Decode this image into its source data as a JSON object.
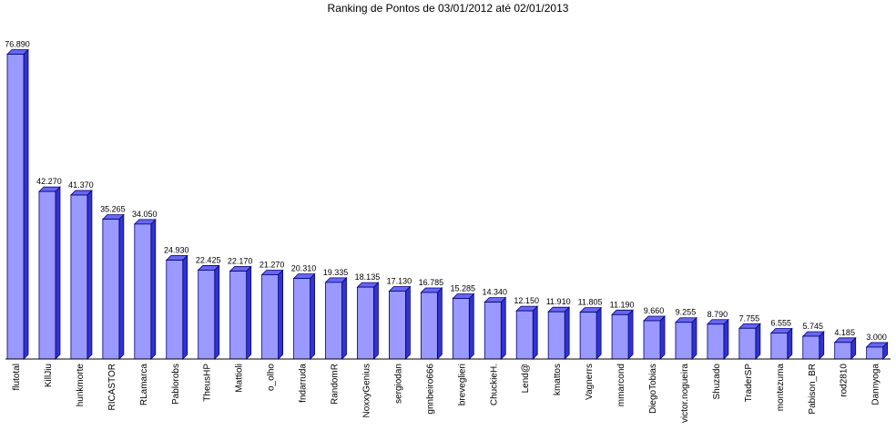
{
  "chart_data": {
    "type": "bar",
    "title": "Ranking de Pontos de 03/01/2012 até 02/01/2013",
    "xlabel": "",
    "ylabel": "",
    "ylim": [
      0,
      80
    ],
    "grid": false,
    "legend": "none",
    "categories": [
      "flutotal",
      "KillJiu",
      "hunkmorte",
      "RICASTOR",
      "RLamarca",
      "Pablorobs",
      "TheusHP",
      "Mattioli",
      "o_olho",
      "fndarruda",
      "RandomR",
      "NoxxyGenius",
      "sergiodan",
      "gnnbeiro666",
      "breveglieri",
      "ChuckieH.",
      "Lend@",
      "kmattos",
      "Vagnerrs",
      "mmarcond",
      "DiegoTobias",
      "victor.nogueira",
      "Shuzado",
      "TraderSP",
      "montezuma",
      "Pabison_BR",
      "rod2810",
      "Dannyoga"
    ],
    "values": [
      76.89,
      42.27,
      41.37,
      35.265,
      34.05,
      24.93,
      22.425,
      22.17,
      21.27,
      20.31,
      19.335,
      18.135,
      17.13,
      16.785,
      15.285,
      14.34,
      12.15,
      11.91,
      11.805,
      11.19,
      9.66,
      9.255,
      8.79,
      7.755,
      6.555,
      5.745,
      4.185,
      3.0
    ],
    "value_labels": [
      "76.890",
      "42.270",
      "41.370",
      "35.265",
      "34.050",
      "24.930",
      "22.425",
      "22.170",
      "21.270",
      "20.310",
      "19.335",
      "18.135",
      "17.130",
      "16.785",
      "15.285",
      "14.340",
      "12.150",
      "11.910",
      "11.805",
      "11.190",
      "9.660",
      "9.255",
      "8.790",
      "7.755",
      "6.555",
      "5.745",
      "4.185",
      "3.000"
    ],
    "colors": {
      "bar_front": "#9999ff",
      "bar_side": "#3333cc",
      "bar_top": "#6666ee",
      "outline": "#000080",
      "axis": "#000000"
    }
  }
}
